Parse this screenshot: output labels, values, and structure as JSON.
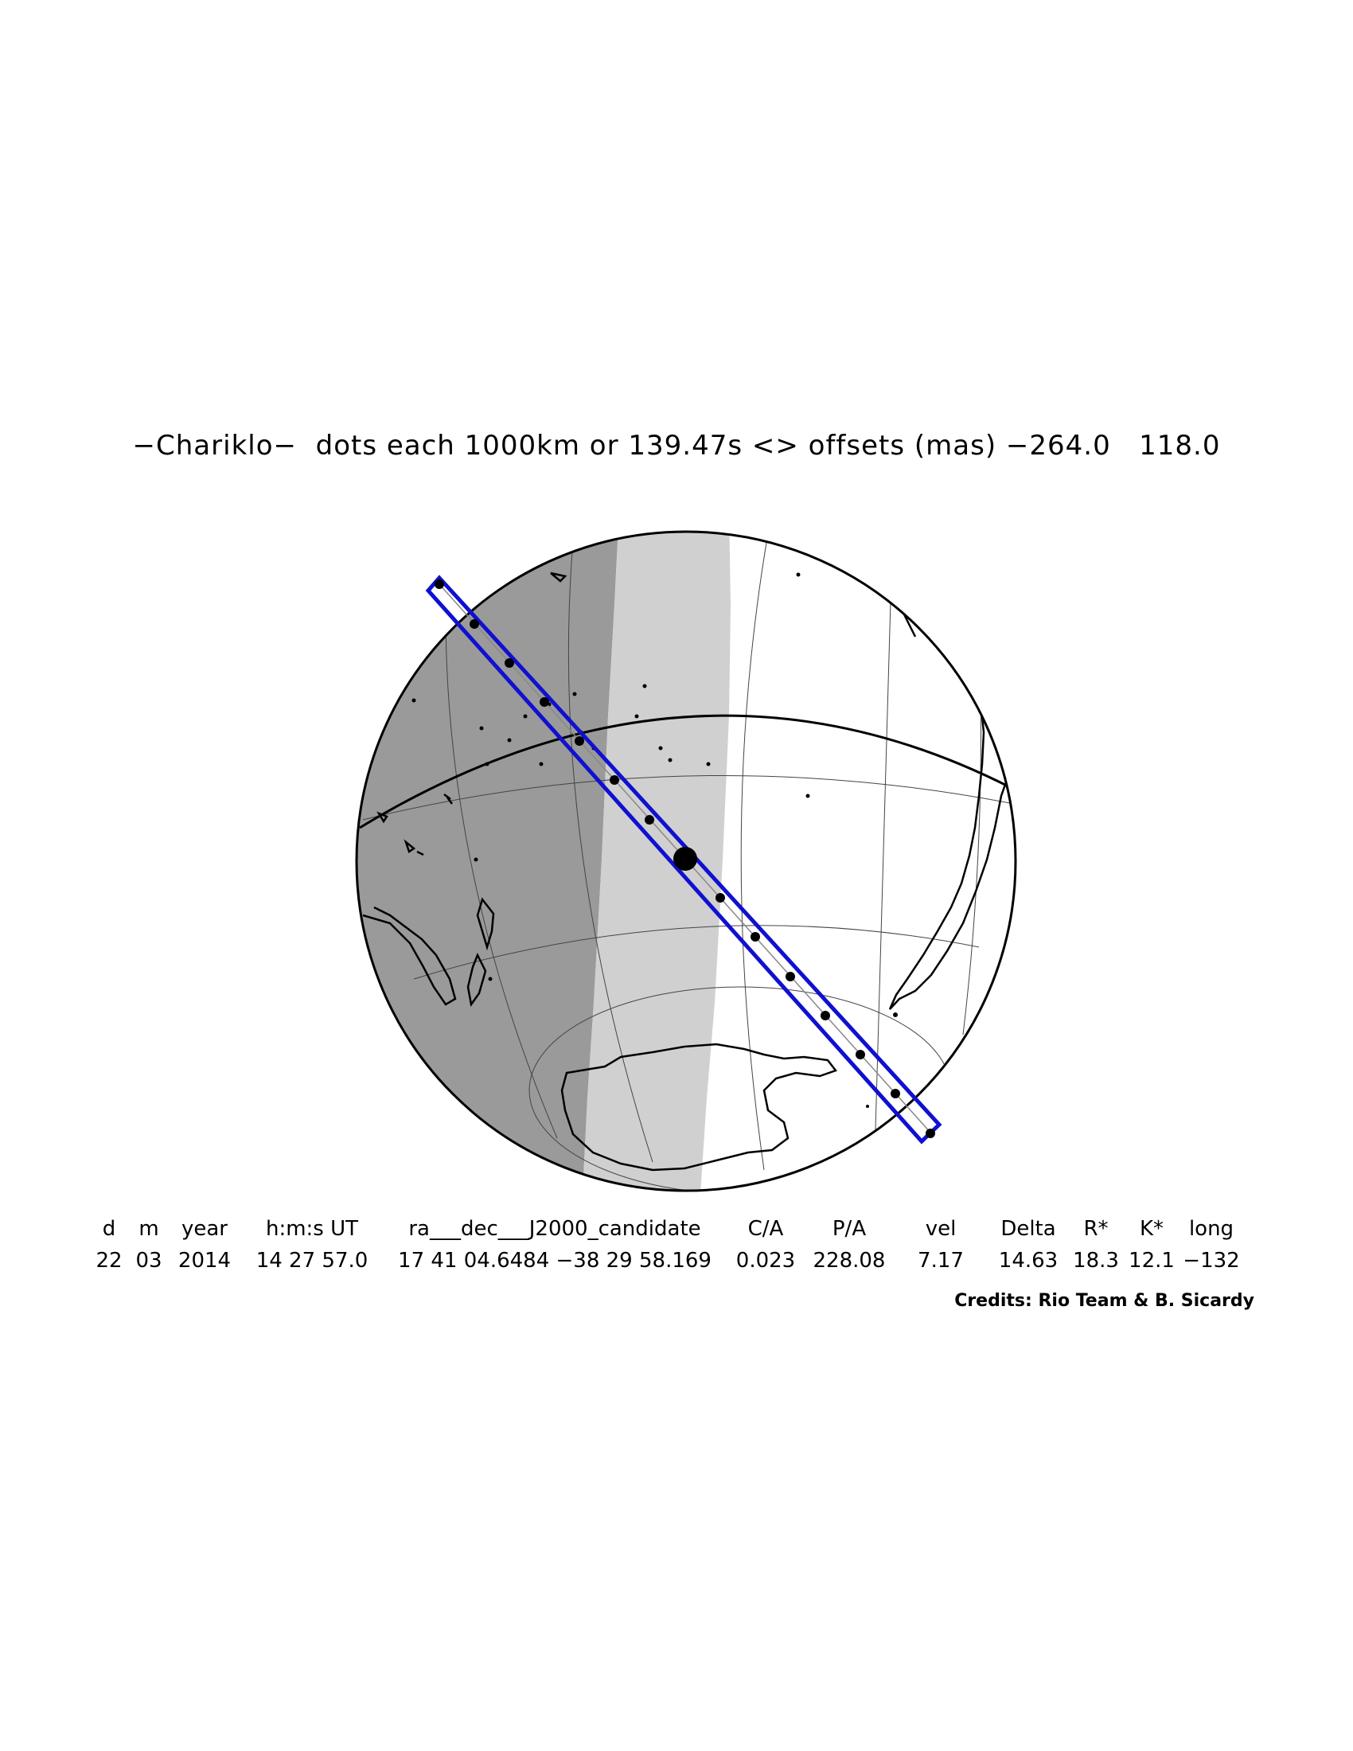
{
  "title": "−Chariklo−  dots each 1000km or 139.47s <> offsets (mas) −264.0   118.0",
  "table": {
    "headers": [
      "d",
      "m",
      "year",
      "h:m:s UT",
      "ra___dec___J2000_candidate",
      "C/A",
      "P/A",
      "vel",
      "Delta",
      "R*",
      "K*",
      "long"
    ],
    "values": [
      "22",
      "03",
      "2014",
      "14 27 57.0",
      "17 41 04.6484 −38 29 58.169",
      "0.023",
      "228.08",
      "7.17",
      "14.63",
      "18.3",
      "12.1",
      "−132"
    ]
  },
  "credits": "Credits: Rio Team & B. Sicardy",
  "colors": {
    "night": "#9a9a9a",
    "twilight": "#d0d0d0",
    "day": "#ffffff",
    "path": "#1010d0",
    "coast": "#000000"
  }
}
